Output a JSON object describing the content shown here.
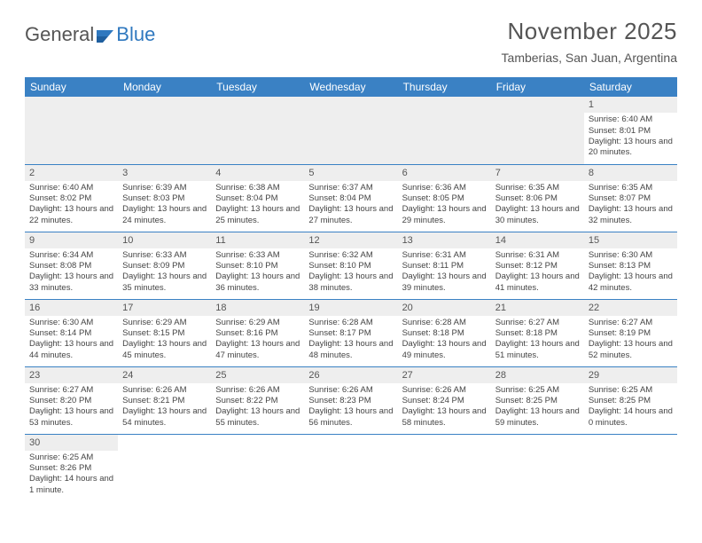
{
  "logo": {
    "text_gray": "General",
    "text_blue": "Blue",
    "icon_color": "#2f78bf"
  },
  "header": {
    "month_year": "November 2025",
    "location": "Tamberias, San Juan, Argentina"
  },
  "styling": {
    "header_bg": "#3a81c4",
    "header_text": "#ffffff",
    "border_color": "#3a81c4",
    "daynum_bg": "#eeeeee",
    "body_text": "#444444",
    "title_text": "#555555",
    "page_bg": "#ffffff",
    "title_fontsize": 26,
    "location_fontsize": 14,
    "dayhead_fontsize": 12,
    "cell_fontsize": 10
  },
  "day_headers": [
    "Sunday",
    "Monday",
    "Tuesday",
    "Wednesday",
    "Thursday",
    "Friday",
    "Saturday"
  ],
  "weeks": [
    [
      null,
      null,
      null,
      null,
      null,
      null,
      {
        "n": "1",
        "sr": "6:40 AM",
        "ss": "8:01 PM",
        "dl": "13 hours and 20 minutes."
      }
    ],
    [
      {
        "n": "2",
        "sr": "6:40 AM",
        "ss": "8:02 PM",
        "dl": "13 hours and 22 minutes."
      },
      {
        "n": "3",
        "sr": "6:39 AM",
        "ss": "8:03 PM",
        "dl": "13 hours and 24 minutes."
      },
      {
        "n": "4",
        "sr": "6:38 AM",
        "ss": "8:04 PM",
        "dl": "13 hours and 25 minutes."
      },
      {
        "n": "5",
        "sr": "6:37 AM",
        "ss": "8:04 PM",
        "dl": "13 hours and 27 minutes."
      },
      {
        "n": "6",
        "sr": "6:36 AM",
        "ss": "8:05 PM",
        "dl": "13 hours and 29 minutes."
      },
      {
        "n": "7",
        "sr": "6:35 AM",
        "ss": "8:06 PM",
        "dl": "13 hours and 30 minutes."
      },
      {
        "n": "8",
        "sr": "6:35 AM",
        "ss": "8:07 PM",
        "dl": "13 hours and 32 minutes."
      }
    ],
    [
      {
        "n": "9",
        "sr": "6:34 AM",
        "ss": "8:08 PM",
        "dl": "13 hours and 33 minutes."
      },
      {
        "n": "10",
        "sr": "6:33 AM",
        "ss": "8:09 PM",
        "dl": "13 hours and 35 minutes."
      },
      {
        "n": "11",
        "sr": "6:33 AM",
        "ss": "8:10 PM",
        "dl": "13 hours and 36 minutes."
      },
      {
        "n": "12",
        "sr": "6:32 AM",
        "ss": "8:10 PM",
        "dl": "13 hours and 38 minutes."
      },
      {
        "n": "13",
        "sr": "6:31 AM",
        "ss": "8:11 PM",
        "dl": "13 hours and 39 minutes."
      },
      {
        "n": "14",
        "sr": "6:31 AM",
        "ss": "8:12 PM",
        "dl": "13 hours and 41 minutes."
      },
      {
        "n": "15",
        "sr": "6:30 AM",
        "ss": "8:13 PM",
        "dl": "13 hours and 42 minutes."
      }
    ],
    [
      {
        "n": "16",
        "sr": "6:30 AM",
        "ss": "8:14 PM",
        "dl": "13 hours and 44 minutes."
      },
      {
        "n": "17",
        "sr": "6:29 AM",
        "ss": "8:15 PM",
        "dl": "13 hours and 45 minutes."
      },
      {
        "n": "18",
        "sr": "6:29 AM",
        "ss": "8:16 PM",
        "dl": "13 hours and 47 minutes."
      },
      {
        "n": "19",
        "sr": "6:28 AM",
        "ss": "8:17 PM",
        "dl": "13 hours and 48 minutes."
      },
      {
        "n": "20",
        "sr": "6:28 AM",
        "ss": "8:18 PM",
        "dl": "13 hours and 49 minutes."
      },
      {
        "n": "21",
        "sr": "6:27 AM",
        "ss": "8:18 PM",
        "dl": "13 hours and 51 minutes."
      },
      {
        "n": "22",
        "sr": "6:27 AM",
        "ss": "8:19 PM",
        "dl": "13 hours and 52 minutes."
      }
    ],
    [
      {
        "n": "23",
        "sr": "6:27 AM",
        "ss": "8:20 PM",
        "dl": "13 hours and 53 minutes."
      },
      {
        "n": "24",
        "sr": "6:26 AM",
        "ss": "8:21 PM",
        "dl": "13 hours and 54 minutes."
      },
      {
        "n": "25",
        "sr": "6:26 AM",
        "ss": "8:22 PM",
        "dl": "13 hours and 55 minutes."
      },
      {
        "n": "26",
        "sr": "6:26 AM",
        "ss": "8:23 PM",
        "dl": "13 hours and 56 minutes."
      },
      {
        "n": "27",
        "sr": "6:26 AM",
        "ss": "8:24 PM",
        "dl": "13 hours and 58 minutes."
      },
      {
        "n": "28",
        "sr": "6:25 AM",
        "ss": "8:25 PM",
        "dl": "13 hours and 59 minutes."
      },
      {
        "n": "29",
        "sr": "6:25 AM",
        "ss": "8:25 PM",
        "dl": "14 hours and 0 minutes."
      }
    ],
    [
      {
        "n": "30",
        "sr": "6:25 AM",
        "ss": "8:26 PM",
        "dl": "14 hours and 1 minute."
      },
      null,
      null,
      null,
      null,
      null,
      null
    ]
  ],
  "labels": {
    "sunrise": "Sunrise:",
    "sunset": "Sunset:",
    "daylight": "Daylight:"
  }
}
